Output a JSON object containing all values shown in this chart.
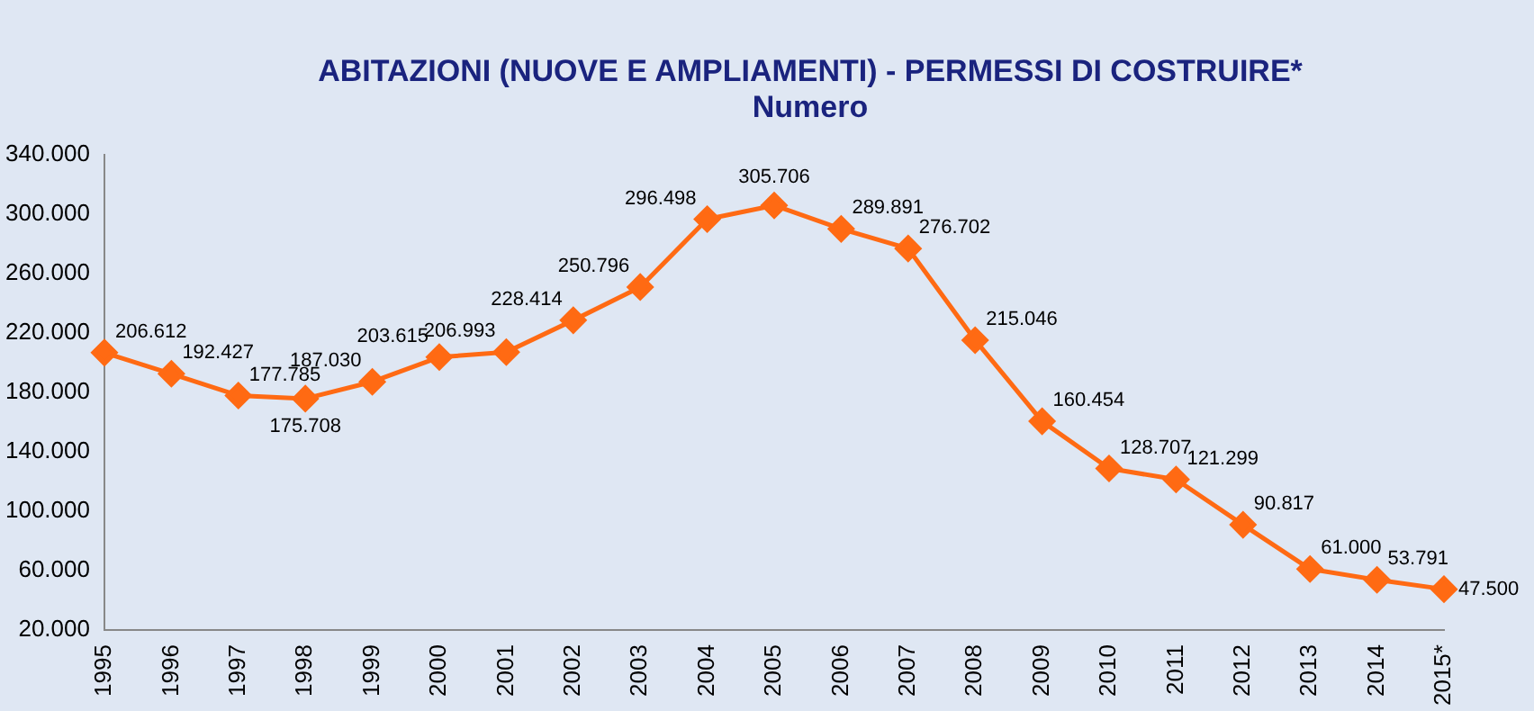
{
  "chart_data": {
    "type": "line",
    "title": "ABITAZIONI (NUOVE E AMPLIAMENTI) - PERMESSI DI COSTRUIRE*",
    "subtitle": "Numero",
    "categories": [
      "1995",
      "1996",
      "1997",
      "1998",
      "1999",
      "2000",
      "2001",
      "2002",
      "2003",
      "2004",
      "2005",
      "2006",
      "2007",
      "2008",
      "2009",
      "2010",
      "2011",
      "2012",
      "2013",
      "2014",
      "2015*"
    ],
    "series": [
      {
        "color": "#ff6a13",
        "values": [
          206612,
          192427,
          177785,
          175708,
          187030,
          203615,
          206993,
          228414,
          250796,
          296498,
          305706,
          289891,
          276702,
          215046,
          160454,
          128707,
          121299,
          90817,
          61000,
          53791,
          47500
        ],
        "value_labels": [
          "206.612",
          "192.427",
          "177.785",
          "175.708",
          "187.030",
          "203.615",
          "206.993",
          "228.414",
          "250.796",
          "296.498",
          "305.706",
          "289.891",
          "276.702",
          "215.046",
          "160.454",
          "128.707",
          "121.299",
          "90.817",
          "61.000",
          "53.791",
          "47.500"
        ]
      }
    ],
    "ylim": [
      20000,
      340000
    ],
    "yticks": [
      {
        "value": 20000,
        "label": "20.000"
      },
      {
        "value": 60000,
        "label": "60.000"
      },
      {
        "value": 100000,
        "label": "100.000"
      },
      {
        "value": 140000,
        "label": "140.000"
      },
      {
        "value": 180000,
        "label": "180.000"
      },
      {
        "value": 220000,
        "label": "220.000"
      },
      {
        "value": 260000,
        "label": "260.000"
      },
      {
        "value": 300000,
        "label": "300.000"
      },
      {
        "value": 340000,
        "label": "340.000"
      }
    ],
    "marker": "diamond",
    "line_style": "solid",
    "grid": false,
    "legend": false
  }
}
